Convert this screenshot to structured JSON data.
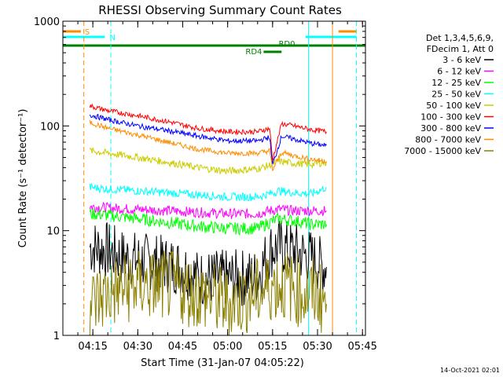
{
  "chart_data": {
    "type": "line",
    "title": "RHESSI Observing Summary Count Rates",
    "xlabel": "Start Time (31-Jan-07 04:05:22)",
    "ylabel": "Count Rate (s⁻¹ detector⁻¹)",
    "y_scale": "log",
    "ylim": [
      1,
      1000
    ],
    "xlim": [
      "04:05",
      "05:46"
    ],
    "x_ticks": [
      "04:15",
      "04:30",
      "04:45",
      "05:00",
      "05:15",
      "05:30",
      "05:45"
    ],
    "y_ticks": [
      "1",
      "10",
      "100",
      "1000"
    ],
    "legend_header": [
      "Det 1,3,4,5,6,9,",
      "FDecim 1, Att 0"
    ],
    "legend_position": "top-right",
    "footer_date": "14-Oct-2021 02:01",
    "flags": [
      {
        "label": "S",
        "color": "#ff8c00",
        "segments": [
          [
            "04:05",
            "04:11"
          ],
          [
            "05:37",
            "05:43"
          ]
        ]
      },
      {
        "label": "N",
        "color": "#00ffff",
        "segments": [
          [
            "04:05",
            "04:19"
          ],
          [
            "05:26",
            "05:43"
          ]
        ]
      },
      {
        "label": "RD0",
        "color": "#008000",
        "segments": [
          [
            "04:05",
            "05:46"
          ]
        ]
      },
      {
        "label": "RD4",
        "color": "#008000",
        "segments": [
          [
            "05:12",
            "05:18"
          ]
        ]
      }
    ],
    "vlines": [
      {
        "time": "04:12",
        "color": "#ff8c00",
        "style": "dashed"
      },
      {
        "time": "04:21",
        "color": "#00ffff",
        "style": "dashed"
      },
      {
        "time": "05:27",
        "color": "#00ffff",
        "style": "solid"
      },
      {
        "time": "05:35",
        "color": "#ff8c00",
        "style": "solid"
      },
      {
        "time": "05:43",
        "color": "#00ffff",
        "style": "dashed"
      }
    ],
    "series": [
      {
        "name": "3 - 6 keV",
        "color": "#000000",
        "x": [
          "04:14",
          "04:20",
          "04:25",
          "04:35",
          "04:45",
          "04:50",
          "05:00",
          "05:10",
          "05:14",
          "05:17",
          "05:22",
          "05:28",
          "05:32",
          "05:33"
        ],
        "y": [
          7.0,
          6.5,
          5.5,
          5.0,
          4.5,
          3.5,
          3.5,
          3.6,
          6.5,
          7.0,
          6.5,
          5.5,
          4.5,
          4.5
        ]
      },
      {
        "name": "6 - 12 keV",
        "color": "#ff00ff",
        "x": [
          "04:14",
          "04:20",
          "04:30",
          "04:40",
          "04:50",
          "05:00",
          "05:10",
          "05:14",
          "05:17",
          "05:22",
          "05:28",
          "05:33"
        ],
        "y": [
          17,
          16.5,
          16,
          15.5,
          15,
          14.5,
          14.5,
          15.5,
          16,
          15.5,
          15.5,
          15.5
        ]
      },
      {
        "name": "12 - 25 keV",
        "color": "#00ff00",
        "x": [
          "04:14",
          "04:20",
          "04:30",
          "04:40",
          "04:50",
          "05:00",
          "05:10",
          "05:14",
          "05:17",
          "05:22",
          "05:28",
          "05:33"
        ],
        "y": [
          14.5,
          14,
          13,
          12,
          11,
          10.5,
          10.5,
          12,
          13,
          12.5,
          11.5,
          11.5
        ]
      },
      {
        "name": "25 - 50 keV",
        "color": "#00ffff",
        "x": [
          "04:14",
          "04:20",
          "04:30",
          "04:40",
          "04:50",
          "05:00",
          "05:10",
          "05:14",
          "05:17",
          "05:22",
          "05:28",
          "05:33"
        ],
        "y": [
          26,
          25,
          24,
          23,
          22,
          21,
          21,
          22.5,
          24,
          23,
          22.5,
          26
        ]
      },
      {
        "name": "50 - 100 keV",
        "color": "#cccc00",
        "x": [
          "04:14",
          "04:20",
          "04:30",
          "04:40",
          "04:50",
          "05:00",
          "05:10",
          "05:14",
          "05:17",
          "05:22",
          "05:28",
          "05:33"
        ],
        "y": [
          58,
          55,
          50,
          45,
          40,
          37,
          39,
          42,
          46,
          44,
          43,
          45
        ]
      },
      {
        "name": "100 - 300 keV",
        "color": "#ff0000",
        "x": [
          "04:14",
          "04:20",
          "04:30",
          "04:40",
          "04:50",
          "05:00",
          "05:10",
          "05:14",
          "05:15",
          "05:18",
          "05:22",
          "05:28",
          "05:33"
        ],
        "y": [
          155,
          140,
          125,
          110,
          95,
          88,
          88,
          95,
          47,
          105,
          100,
          92,
          88
        ]
      },
      {
        "name": "300 - 800 keV",
        "color": "#0000ff",
        "x": [
          "04:14",
          "04:20",
          "04:30",
          "04:40",
          "04:50",
          "05:00",
          "05:10",
          "05:14",
          "05:15",
          "05:18",
          "05:22",
          "05:28",
          "05:33"
        ],
        "y": [
          128,
          115,
          100,
          90,
          80,
          72,
          72,
          78,
          42,
          80,
          75,
          68,
          65
        ]
      },
      {
        "name": "800 - 7000 keV",
        "color": "#ff8c00",
        "x": [
          "04:14",
          "04:20",
          "04:30",
          "04:40",
          "04:50",
          "05:00",
          "05:10",
          "05:14",
          "05:15",
          "05:18",
          "05:22",
          "05:28",
          "05:33"
        ],
        "y": [
          108,
          95,
          82,
          70,
          60,
          55,
          55,
          58,
          38,
          56,
          52,
          48,
          46
        ]
      },
      {
        "name": "7000 - 15000 keV",
        "color": "#8b8000",
        "x": [
          "04:14",
          "04:20",
          "04:30",
          "04:40",
          "04:50",
          "05:00",
          "05:10",
          "05:15",
          "05:20",
          "05:25",
          "05:30",
          "05:33"
        ],
        "y": [
          2.0,
          2.5,
          3.0,
          3.0,
          2.5,
          2.0,
          2.5,
          3.0,
          3.0,
          2.5,
          2.5,
          2.0
        ]
      }
    ]
  }
}
